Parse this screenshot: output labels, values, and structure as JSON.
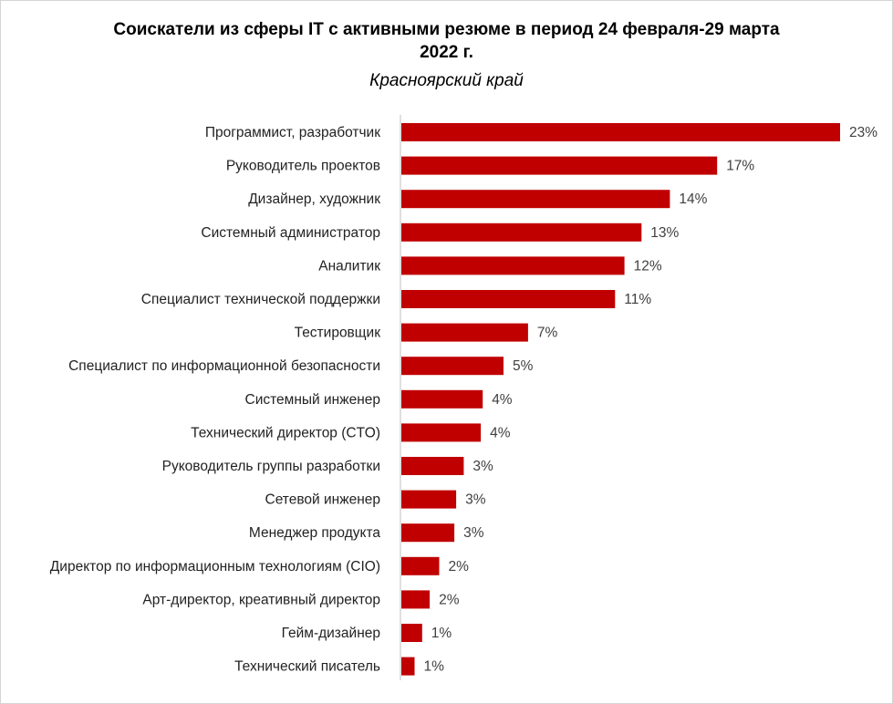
{
  "chart_data": {
    "type": "bar",
    "orientation": "horizontal",
    "title_line1": "Соискатели из сферы IT с активными резюме в период 24 февраля-29 марта",
    "title_line2": "2022 г.",
    "subtitle": "Красноярский край",
    "categories": [
      "Программист, разработчик",
      "Руководитель проектов",
      "Дизайнер, художник",
      "Системный администратор",
      "Аналитик",
      "Специалист технической поддержки",
      "Тестировщик",
      "Специалист по информационной безопасности",
      "Системный инженер",
      "Технический директор (CTO)",
      "Руководитель группы разработки",
      "Сетевой инженер",
      "Менеджер продукта",
      "Директор по информационным технологиям (CIO)",
      "Арт-директор, креативный директор",
      "Гейм-дизайнер",
      "Технический писатель"
    ],
    "values": [
      23.2,
      16.7,
      14.2,
      12.7,
      11.8,
      11.3,
      6.7,
      5.4,
      4.3,
      4.2,
      3.3,
      2.9,
      2.8,
      2.0,
      1.5,
      1.1,
      0.7
    ],
    "value_labels": [
      "23%",
      "17%",
      "14%",
      "13%",
      "12%",
      "11%",
      "7%",
      "5%",
      "4%",
      "4%",
      "3%",
      "3%",
      "3%",
      "2%",
      "2%",
      "1%",
      "1%"
    ],
    "bar_color": "#c00000",
    "axis_color": "#bfbfbf",
    "grid": false,
    "legend": "none"
  }
}
